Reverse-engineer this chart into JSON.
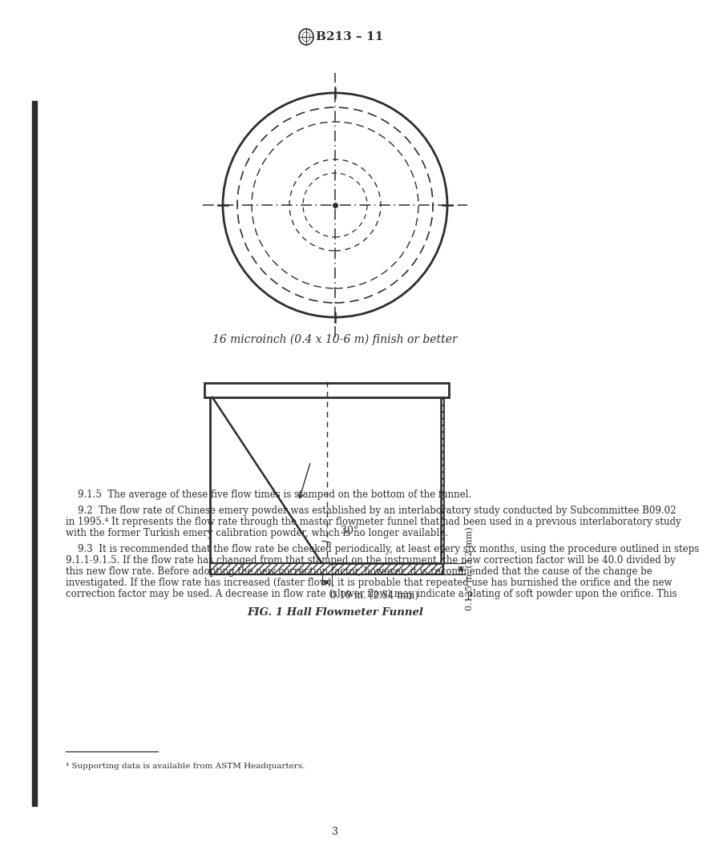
{
  "page_width": 8.16,
  "page_height": 10.56,
  "bg_color": "#ffffff",
  "text_color": "#2d2d2d",
  "header_text": "B213 – 11",
  "page_number": "3",
  "left_bar_color": "#2d2d2d",
  "figure_caption": "FIG. 1 Hall Flowmeter Funnel",
  "surface_finish_label": "16 microinch (0.4 x 10-6 m) finish or better",
  "dim_label_1": "0.10 in. (2.54 mm)",
  "dim_label_2": "0.125 in. (3.2 mm)",
  "angle_label": "30°",
  "footnote": "⁴ Supporting data is available from ASTM Headquarters.",
  "para1": "    9.1.5  The average of these five flow times is stamped on the bottom of the funnel.",
  "para2_lines": [
    "    9.2  The flow rate of Chinese emery powder was established by an interlaboratory study conducted by Subcommittee B09.02",
    "in 1995.⁴ It represents the flow rate through the master flowmeter funnel that had been used in a previous interlaboratory study",
    "with the former Turkish emery calibration powder, which is no longer available."
  ],
  "para3_lines": [
    "    9.3  It is recommended that the flow rate be checked periodically, at least every six months, using the procedure outlined in steps",
    "9.1.1-9.1.5. If the flow rate has changed from that stamped on the instrument, the new correction factor will be 40.0 divided by",
    "this new flow rate. Before adopting the new correction factor, however, it is recommended that the cause of the change be",
    "investigated. If the flow rate has increased (faster flow), it is probable that repeated use has burnished the orifice and the new",
    "correction factor may be used. A decrease in flow rate (slower flow) may indicate a plating of soft powder upon the orifice. This"
  ]
}
